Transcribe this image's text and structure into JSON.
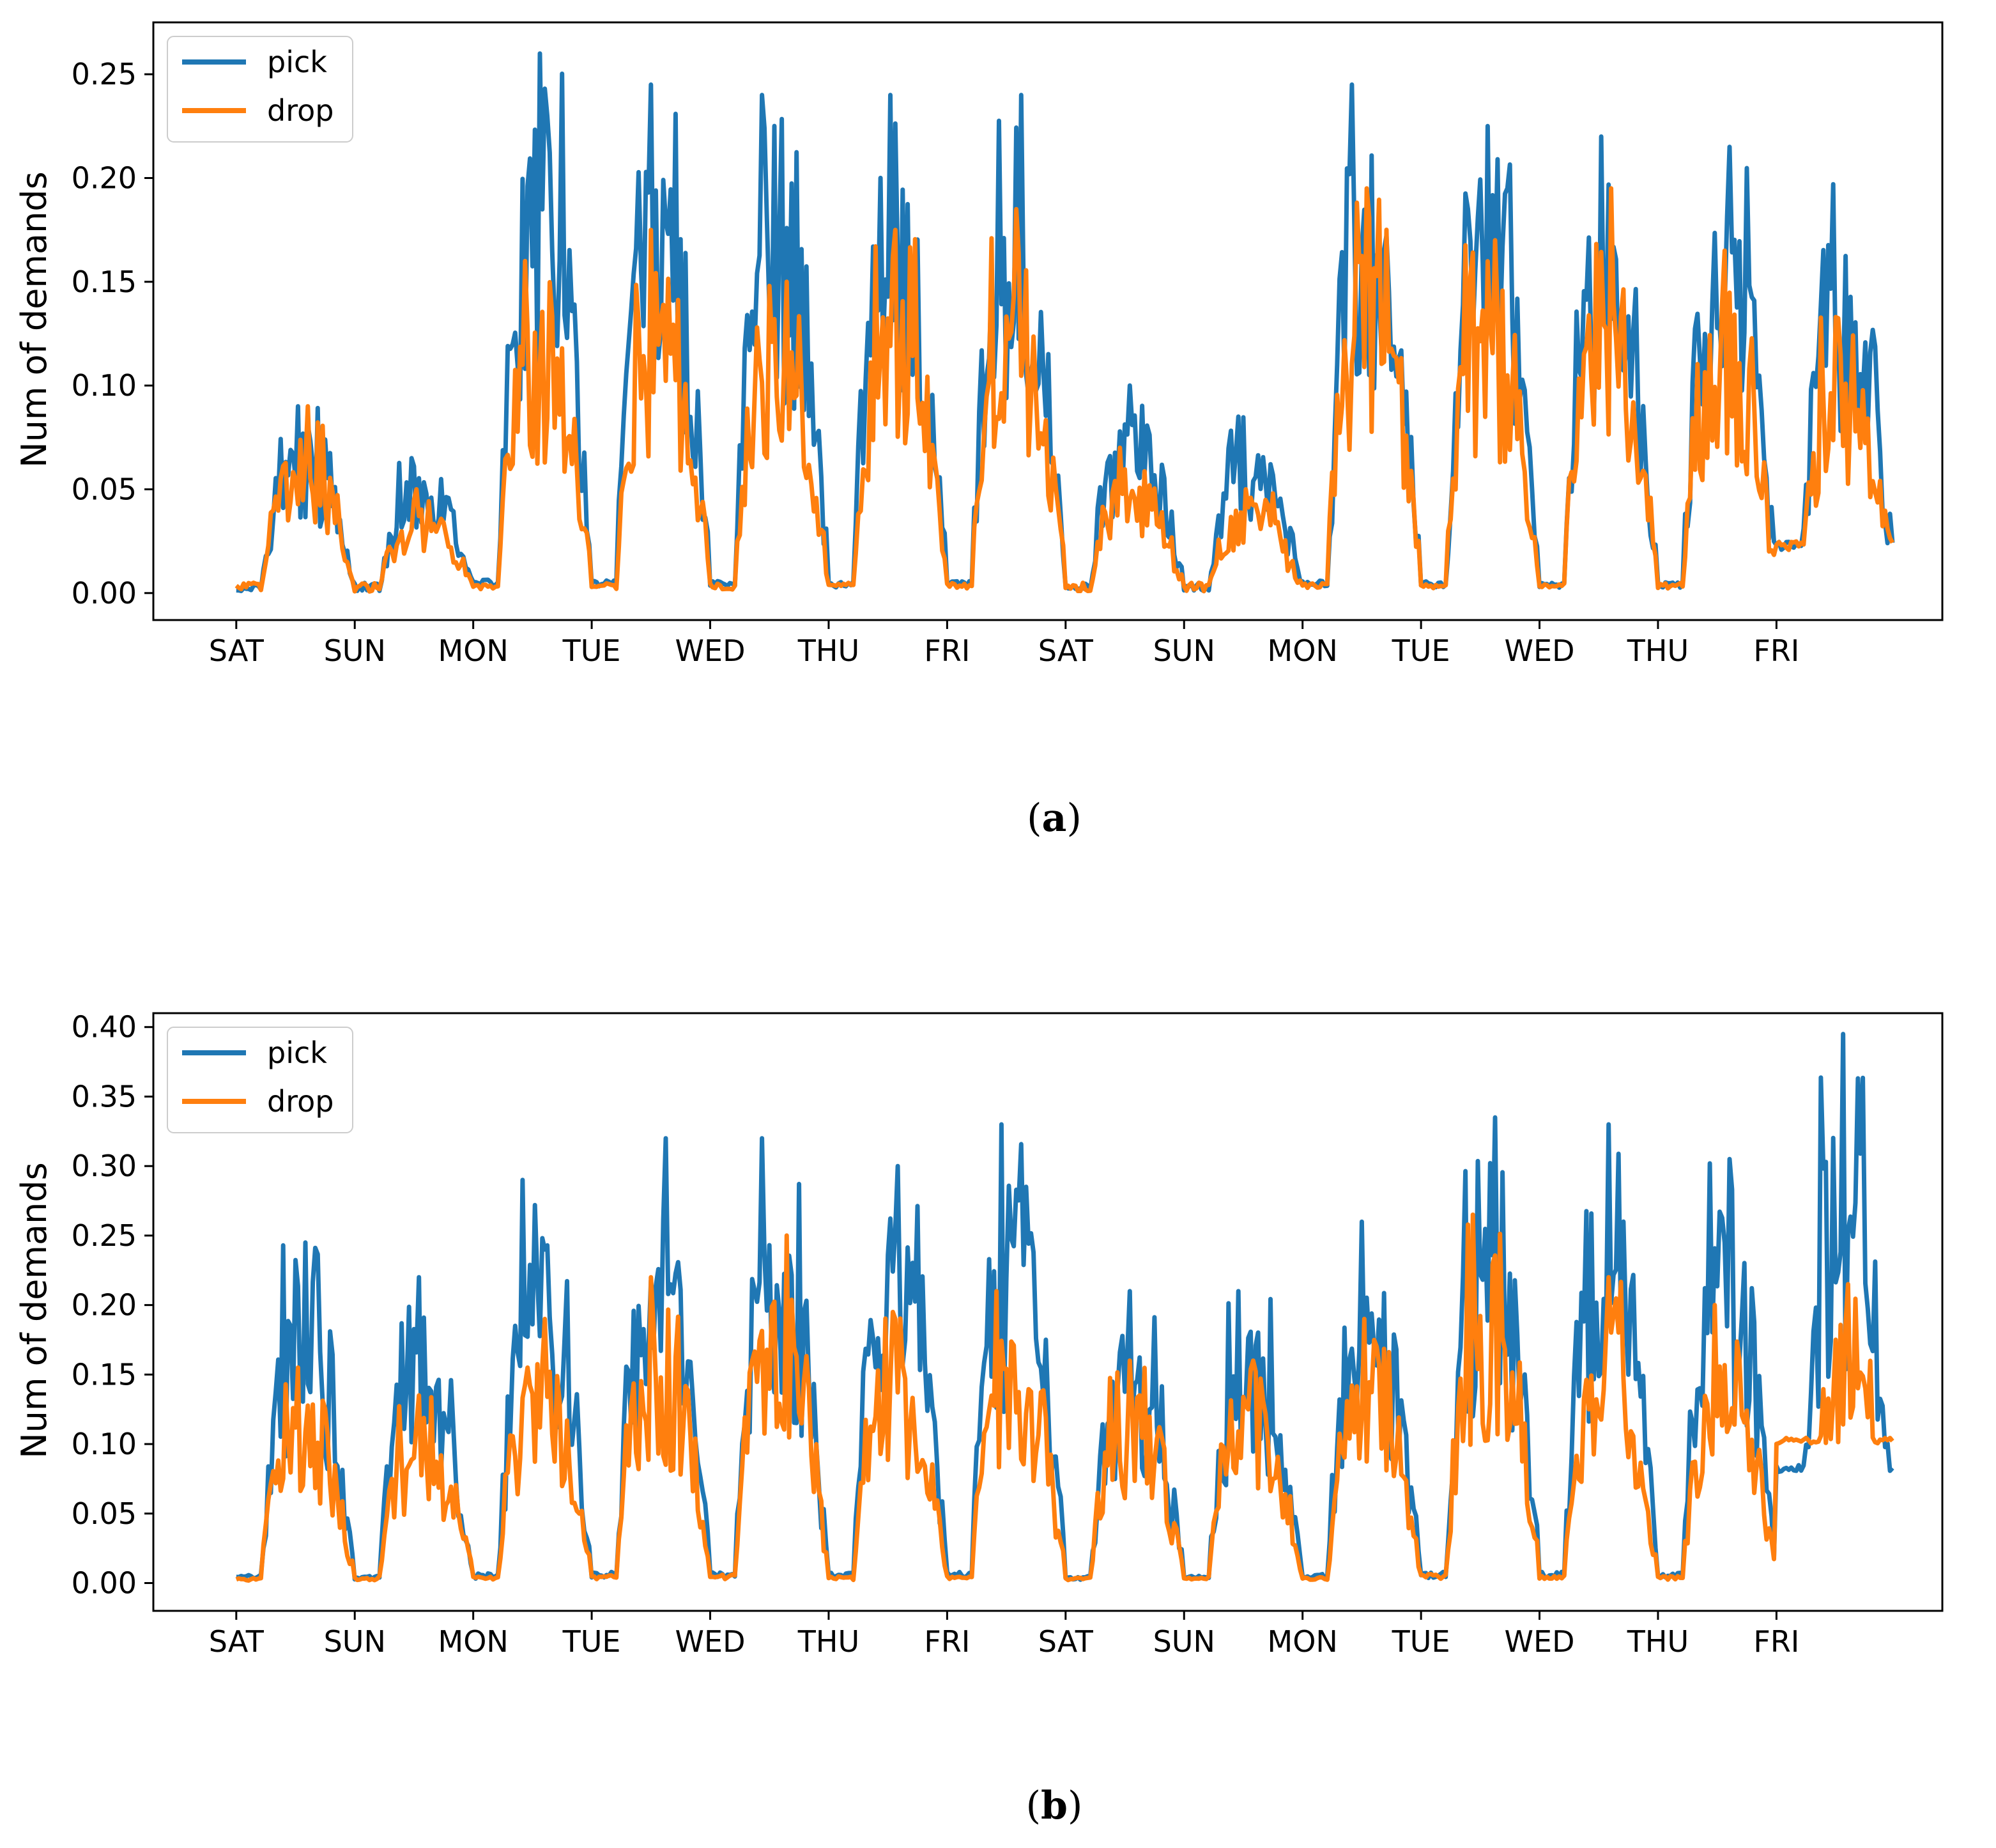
{
  "colors": {
    "pick": "#1f77b4",
    "drop": "#ff7f0e"
  },
  "chart_data": [
    {
      "type": "line",
      "panel": "a",
      "caption_open": "(",
      "caption_letter": "a",
      "caption_close": ")",
      "ylabel": "Num of demands",
      "ylim": [
        -0.013,
        0.275
      ],
      "yticks": [
        "0.00",
        "0.05",
        "0.10",
        "0.15",
        "0.20",
        "0.25"
      ],
      "ytick_values": [
        0,
        0.05,
        0.1,
        0.15,
        0.2,
        0.25
      ],
      "xlim": [
        -0.7,
        14.4
      ],
      "xticks": [
        "SAT",
        "SUN",
        "MON",
        "TUE",
        "WED",
        "THU",
        "FRI",
        "SAT",
        "SUN",
        "MON",
        "TUE",
        "WED",
        "THU",
        "FRI"
      ],
      "series": [
        {
          "name": "pick",
          "color_key": "pick",
          "day_peaks": [
            0.09,
            0.065,
            0.26,
            0.245,
            0.24,
            0.24,
            0.24,
            0.1,
            0.085,
            0.245,
            0.225,
            0.22,
            0.215,
            0.197
          ],
          "day_floor": [
            0.0,
            0.0,
            0.0,
            0.0,
            0.0,
            0.0,
            0.0,
            0.0,
            0.0,
            0.0,
            0.0,
            0.0,
            0.0,
            0.02
          ]
        },
        {
          "name": "drop",
          "color_key": "drop",
          "day_peaks": [
            0.09,
            0.05,
            0.16,
            0.175,
            0.15,
            0.175,
            0.185,
            0.07,
            0.05,
            0.195,
            0.17,
            0.195,
            0.165,
            0.133
          ],
          "day_floor": [
            0.0,
            0.0,
            0.0,
            0.0,
            0.0,
            0.0,
            0.0,
            0.0,
            0.0,
            0.0,
            0.0,
            0.0,
            0.0,
            0.02
          ]
        }
      ],
      "legend": [
        "pick",
        "drop"
      ],
      "legend_position": "top-left"
    },
    {
      "type": "line",
      "panel": "b",
      "caption_open": "(",
      "caption_letter": "b",
      "caption_close": ")",
      "ylabel": "Num of demands",
      "ylim": [
        -0.02,
        0.41
      ],
      "yticks": [
        "0.00",
        "0.05",
        "0.10",
        "0.15",
        "0.20",
        "0.25",
        "0.30",
        "0.35",
        "0.40"
      ],
      "ytick_values": [
        0,
        0.05,
        0.1,
        0.15,
        0.2,
        0.25,
        0.3,
        0.35,
        0.4
      ],
      "xlim": [
        -0.7,
        14.4
      ],
      "xticks": [
        "SAT",
        "SUN",
        "MON",
        "TUE",
        "WED",
        "THU",
        "FRI",
        "SAT",
        "SUN",
        "MON",
        "TUE",
        "WED",
        "THU",
        "FRI"
      ],
      "series": [
        {
          "name": "pick",
          "color_key": "pick",
          "day_peaks": [
            0.245,
            0.22,
            0.29,
            0.32,
            0.32,
            0.3,
            0.33,
            0.21,
            0.21,
            0.26,
            0.335,
            0.33,
            0.305,
            0.395
          ],
          "day_floor": [
            0.0,
            0.0,
            0.0,
            0.0,
            0.0,
            0.0,
            0.0,
            0.0,
            0.0,
            0.0,
            0.0,
            0.0,
            0.0,
            0.08
          ]
        },
        {
          "name": "drop",
          "color_key": "drop",
          "day_peaks": [
            0.155,
            0.135,
            0.19,
            0.22,
            0.25,
            0.195,
            0.21,
            0.16,
            0.16,
            0.19,
            0.265,
            0.22,
            0.2,
            0.215
          ],
          "day_floor": [
            0.0,
            0.0,
            0.0,
            0.0,
            0.0,
            0.0,
            0.0,
            0.0,
            0.0,
            0.0,
            0.0,
            0.0,
            0.0,
            0.1
          ]
        }
      ],
      "legend": [
        "pick",
        "drop"
      ],
      "legend_position": "top-left"
    }
  ]
}
